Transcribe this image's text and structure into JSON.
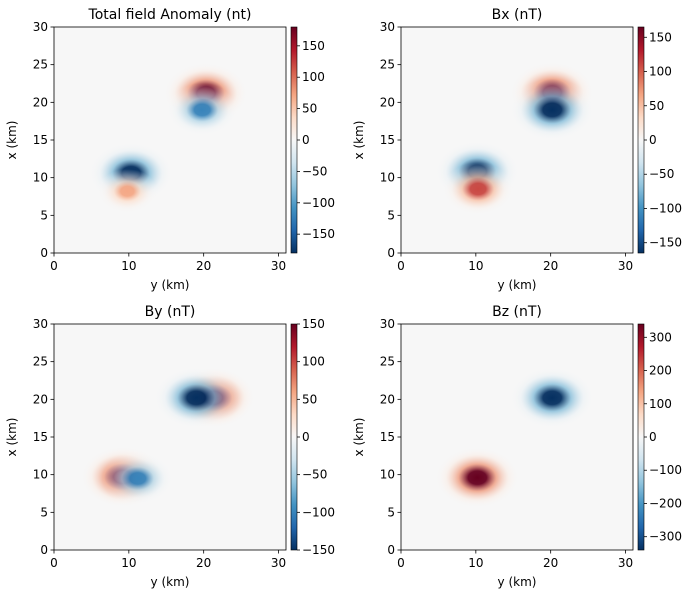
{
  "chart_data": [
    {
      "type": "heatmap",
      "title": "Total field Anomaly (nt)",
      "xlabel": "y (km)",
      "ylabel": "x (km)",
      "xlim": [
        0,
        30
      ],
      "ylim": [
        0,
        30
      ],
      "xticks": [
        0,
        10,
        20,
        30
      ],
      "yticks": [
        0,
        5,
        10,
        15,
        20,
        25,
        30
      ],
      "colormap": "RdBu_r",
      "colorbar": {
        "range": [
          -180,
          180
        ],
        "ticks": [
          -150,
          -100,
          -50,
          0,
          50,
          100,
          150
        ]
      },
      "features": [
        {
          "y": 20.3,
          "x": 21.2,
          "value": 180
        },
        {
          "y": 19.8,
          "x": 19.0,
          "value": -120
        },
        {
          "y": 10.3,
          "x": 10.6,
          "value": -180
        },
        {
          "y": 9.8,
          "x": 8.2,
          "value": 70
        }
      ]
    },
    {
      "type": "heatmap",
      "title": "Bx (nT)",
      "xlabel": "y (km)",
      "ylabel": "x (km)",
      "xlim": [
        0,
        30
      ],
      "ylim": [
        0,
        30
      ],
      "xticks": [
        0,
        10,
        20,
        30
      ],
      "yticks": [
        0,
        5,
        10,
        15,
        20,
        25,
        30
      ],
      "colormap": "RdBu_r",
      "colorbar": {
        "range": [
          -165,
          165
        ],
        "ticks": [
          -150,
          -100,
          -50,
          0,
          50,
          100,
          150
        ]
      },
      "features": [
        {
          "y": 20.2,
          "x": 21.3,
          "value": 165
        },
        {
          "y": 20.2,
          "x": 19.0,
          "value": -165
        },
        {
          "y": 10.2,
          "x": 10.8,
          "value": -165
        },
        {
          "y": 10.3,
          "x": 8.5,
          "value": 110
        }
      ]
    },
    {
      "type": "heatmap",
      "title": "By (nT)",
      "xlabel": "y (km)",
      "ylabel": "x (km)",
      "xlim": [
        0,
        30
      ],
      "ylim": [
        0,
        30
      ],
      "xticks": [
        0,
        10,
        20,
        30
      ],
      "yticks": [
        0,
        5,
        10,
        15,
        20,
        25,
        30
      ],
      "colormap": "RdBu_r",
      "colorbar": {
        "range": [
          -150,
          150
        ],
        "ticks": [
          -150,
          -100,
          -50,
          0,
          50,
          100,
          150
        ]
      },
      "features": [
        {
          "y": 21.3,
          "x": 20.2,
          "value": 150
        },
        {
          "y": 19.0,
          "x": 20.2,
          "value": -150
        },
        {
          "y": 9.2,
          "x": 9.7,
          "value": 150
        },
        {
          "y": 11.2,
          "x": 9.5,
          "value": -100
        }
      ]
    },
    {
      "type": "heatmap",
      "title": "Bz (nT)",
      "xlabel": "y (km)",
      "ylabel": "x (km)",
      "xlim": [
        0,
        30
      ],
      "ylim": [
        0,
        30
      ],
      "xticks": [
        0,
        10,
        20,
        30
      ],
      "yticks": [
        0,
        5,
        10,
        15,
        20,
        25,
        30
      ],
      "colormap": "RdBu_r",
      "colorbar": {
        "range": [
          -340,
          340
        ],
        "ticks": [
          -300,
          -200,
          -100,
          0,
          100,
          200,
          300
        ]
      },
      "features": [
        {
          "y": 20.2,
          "x": 20.2,
          "value": -340
        },
        {
          "y": 10.2,
          "x": 9.6,
          "value": 340
        }
      ]
    }
  ]
}
